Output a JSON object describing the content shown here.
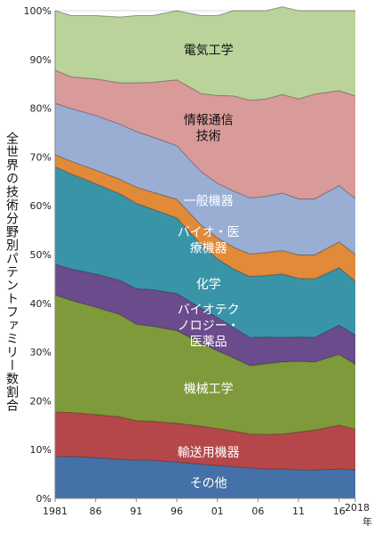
{
  "chart_data": {
    "type": "area",
    "stacked": true,
    "ylabel": "全世界の技術分野別パテントファミリー数割合",
    "xunit": "年",
    "ylim": [
      0,
      100
    ],
    "y_ticks": [
      "0%",
      "10%",
      "20%",
      "30%",
      "40%",
      "50%",
      "60%",
      "70%",
      "80%",
      "90%",
      "100%"
    ],
    "x_tick_labels": [
      "1981",
      "86",
      "91",
      "96",
      "01",
      "06",
      "11",
      "16",
      "2018"
    ],
    "x_tick_years": [
      1981,
      1986,
      1991,
      1996,
      2001,
      2006,
      2011,
      2016,
      2018
    ],
    "x": [
      1981,
      1983,
      1986,
      1989,
      1991,
      1993,
      1996,
      1999,
      2001,
      2003,
      2005,
      2007,
      2009,
      2011,
      2013,
      2016,
      2018
    ],
    "series": [
      {
        "name": "その他",
        "labelLines": [
          "その他"
        ],
        "labelYear": 2001,
        "labelPct": 3.2,
        "labelColor": "#ffffff",
        "color": "#4472a8",
        "values": [
          8.5,
          8.6,
          8.3,
          8.0,
          7.8,
          7.8,
          7.4,
          7.0,
          6.7,
          6.5,
          6.2,
          6.0,
          6.0,
          5.8,
          5.8,
          6.0,
          5.8
        ]
      },
      {
        "name": "輸送用機器",
        "labelLines": [
          "輸送用機器"
        ],
        "labelYear": 2001,
        "labelPct": 9.5,
        "labelColor": "#ffffff",
        "color": "#b5474a",
        "values": [
          9.2,
          9.0,
          8.9,
          8.7,
          8.1,
          8.0,
          8.0,
          7.8,
          7.6,
          7.3,
          7.0,
          7.1,
          7.2,
          7.8,
          8.2,
          9.0,
          8.4
        ]
      },
      {
        "name": "機械工学",
        "labelLines": [
          "機械工学"
        ],
        "labelYear": 2001,
        "labelPct": 22.5,
        "labelColor": "#ffffff",
        "color": "#7f9a3a",
        "values": [
          24.0,
          23.0,
          22.0,
          21.0,
          19.8,
          19.5,
          19.0,
          17.0,
          16.0,
          15.0,
          14.0,
          14.5,
          14.8,
          14.5,
          14.0,
          14.5,
          13.3
        ]
      },
      {
        "name": "バイオテクノロジー・医薬品",
        "labelLines": [
          "バイオテク",
          "ノロジー・",
          "医薬品"
        ],
        "labelYear": 2001,
        "labelPct": 35.5,
        "labelColor": "#ffffff",
        "color": "#6a4b8c",
        "values": [
          6.3,
          6.4,
          6.8,
          7.0,
          7.3,
          7.5,
          7.6,
          7.2,
          6.8,
          6.2,
          5.8,
          5.5,
          5.0,
          5.0,
          5.0,
          6.0,
          6.0
        ]
      },
      {
        "name": "化学",
        "labelLines": [
          "化学"
        ],
        "labelYear": 2001,
        "labelPct": 44.0,
        "labelColor": "#ffffff",
        "color": "#3a94a8",
        "values": [
          20.0,
          19.5,
          18.5,
          17.7,
          17.5,
          16.5,
          15.5,
          13.0,
          12.0,
          12.0,
          12.5,
          12.6,
          13.0,
          12.0,
          12.0,
          11.8,
          11.0
        ]
      },
      {
        "name": "バイオ・医療機器",
        "labelLines": [
          "バイオ・医",
          "療機器"
        ],
        "labelYear": 2001,
        "labelPct": 53.0,
        "labelColor": "#ffffff",
        "color": "#e08a3a",
        "values": [
          2.5,
          2.6,
          2.8,
          3.0,
          3.3,
          3.5,
          3.8,
          4.0,
          4.3,
          4.5,
          4.6,
          4.7,
          4.8,
          4.8,
          4.9,
          5.3,
          5.5
        ]
      },
      {
        "name": "一般機器",
        "labelLines": [
          "一般機器"
        ],
        "labelYear": 2001,
        "labelPct": 61.0,
        "labelColor": "#ffffff",
        "color": "#9aaed4",
        "values": [
          10.5,
          10.8,
          11.2,
          11.3,
          11.4,
          11.3,
          11.0,
          11.0,
          11.2,
          11.5,
          11.5,
          11.5,
          11.8,
          11.5,
          11.5,
          11.5,
          11.5
        ]
      },
      {
        "name": "情報通信技術",
        "labelLines": [
          "情報通信",
          "技術"
        ],
        "labelYear": 2001,
        "labelPct": 76.0,
        "labelColor": "#111111",
        "color": "#d99a9a",
        "values": [
          6.8,
          6.5,
          7.5,
          8.5,
          10.0,
          11.2,
          13.5,
          16.0,
          18.0,
          19.5,
          20.0,
          20.0,
          20.2,
          20.5,
          21.5,
          19.5,
          21.0
        ]
      },
      {
        "name": "電気工学",
        "labelLines": [
          "電気工学"
        ],
        "labelYear": 2001,
        "labelPct": 92.0,
        "labelColor": "#111111",
        "color": "#b9d39a",
        "values": [
          12.2,
          12.6,
          13.0,
          13.5,
          13.8,
          13.7,
          14.2,
          16.0,
          16.4,
          17.5,
          18.4,
          18.1,
          18.0,
          18.1,
          17.1,
          16.4,
          17.5
        ]
      }
    ]
  }
}
